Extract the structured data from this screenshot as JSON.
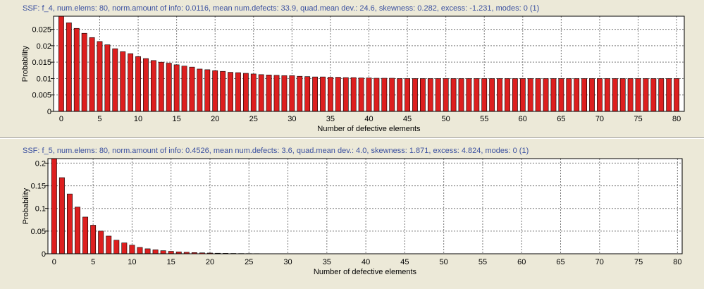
{
  "colors": {
    "bar": "#dd1f1f",
    "bar_edge": "#000000",
    "header_text": "#3a50a0",
    "background": "#ece9d8",
    "plot_bg": "#ffffff"
  },
  "panels": [
    {
      "header": "SSF: f_4,  num.elems: 80,  norm.amount of info: 0.0116,  mean num.defects: 33.9,  quad.mean dev.: 24.6,  skewness: 0.282,  excess: -1.231,  modes: 0 (1)"
    },
    {
      "header": "SSF: f_5,  num.elems: 80,  norm.amount of info: 0.4526,  mean num.defects: 3.6,  quad.mean dev.: 4.0,  skewness: 1.871,  excess: 4.824,  modes: 0 (1)"
    }
  ],
  "chart_data": [
    {
      "type": "bar",
      "xlabel": "Number of defective elements",
      "ylabel": "Probability",
      "x": [
        0,
        1,
        2,
        3,
        4,
        5,
        6,
        7,
        8,
        9,
        10,
        11,
        12,
        13,
        14,
        15,
        16,
        17,
        18,
        19,
        20,
        21,
        22,
        23,
        24,
        25,
        26,
        27,
        28,
        29,
        30,
        31,
        32,
        33,
        34,
        35,
        36,
        37,
        38,
        39,
        40,
        41,
        42,
        43,
        44,
        45,
        46,
        47,
        48,
        49,
        50,
        51,
        52,
        53,
        54,
        55,
        56,
        57,
        58,
        59,
        60,
        61,
        62,
        63,
        64,
        65,
        66,
        67,
        68,
        69,
        70,
        71,
        72,
        73,
        74,
        75,
        76,
        77,
        78,
        79,
        80
      ],
      "values": [
        0.0295,
        0.027,
        0.0253,
        0.0238,
        0.0225,
        0.0213,
        0.0203,
        0.0191,
        0.0182,
        0.0176,
        0.0167,
        0.0161,
        0.0155,
        0.015,
        0.0147,
        0.0142,
        0.0138,
        0.0135,
        0.0129,
        0.0127,
        0.0124,
        0.0122,
        0.0119,
        0.0118,
        0.0116,
        0.0114,
        0.0112,
        0.0111,
        0.011,
        0.0109,
        0.0109,
        0.0107,
        0.0106,
        0.0105,
        0.0105,
        0.0104,
        0.0104,
        0.0103,
        0.0103,
        0.0102,
        0.0102,
        0.0101,
        0.0101,
        0.0101,
        0.01,
        0.01,
        0.01,
        0.01,
        0.01,
        0.01,
        0.01,
        0.01,
        0.01,
        0.01,
        0.01,
        0.01,
        0.01,
        0.01,
        0.01,
        0.01,
        0.01,
        0.01,
        0.01,
        0.01,
        0.01,
        0.01,
        0.01,
        0.01,
        0.01,
        0.01,
        0.01,
        0.01,
        0.01,
        0.01,
        0.01,
        0.01,
        0.01,
        0.01,
        0.01,
        0.01,
        0.01
      ],
      "xlim": [
        -1,
        81
      ],
      "ylim": [
        0,
        0.029
      ],
      "xticks": [
        "0",
        "5",
        "10",
        "15",
        "20",
        "25",
        "30",
        "35",
        "40",
        "45",
        "50",
        "55",
        "60",
        "65",
        "70",
        "75",
        "80"
      ],
      "yticks": [
        "0",
        "0.005",
        "0.01",
        "0.015",
        "0.02",
        "0.025"
      ],
      "grid": true
    },
    {
      "type": "bar",
      "xlabel": "Number of defective elements",
      "ylabel": "Probability",
      "x": [
        0,
        1,
        2,
        3,
        4,
        5,
        6,
        7,
        8,
        9,
        10,
        11,
        12,
        13,
        14,
        15,
        16,
        17,
        18,
        19,
        20,
        21,
        22,
        23,
        24,
        25,
        26,
        27,
        28,
        29,
        30,
        31,
        32,
        33,
        34,
        35,
        36,
        37,
        38,
        39,
        40,
        41,
        42,
        43,
        44,
        45,
        46,
        47,
        48,
        49,
        50,
        51,
        52,
        53,
        54,
        55,
        56,
        57,
        58,
        59,
        60,
        61,
        62,
        63,
        64,
        65,
        66,
        67,
        68,
        69,
        70,
        71,
        72,
        73,
        74,
        75,
        76,
        77,
        78,
        79,
        80
      ],
      "values": [
        0.215,
        0.168,
        0.132,
        0.103,
        0.081,
        0.063,
        0.05,
        0.039,
        0.03,
        0.024,
        0.019,
        0.014,
        0.011,
        0.0087,
        0.0068,
        0.0054,
        0.0042,
        0.0033,
        0.0026,
        0.002,
        0.0016,
        0.0012,
        0.001,
        0.0008,
        0.0006,
        0.0005,
        0.0004,
        0.0003,
        0.0002,
        0.0002,
        0.0001,
        0.0001,
        0.0001,
        0.0001,
        0,
        0,
        0,
        0,
        0,
        0,
        0,
        0,
        0,
        0,
        0,
        0,
        0,
        0,
        0,
        0,
        0,
        0,
        0,
        0,
        0,
        0,
        0,
        0,
        0,
        0,
        0,
        0,
        0,
        0,
        0,
        0,
        0,
        0,
        0,
        0,
        0,
        0,
        0,
        0,
        0,
        0,
        0,
        0,
        0,
        0,
        0
      ],
      "xlim": [
        -0.8,
        80.6
      ],
      "ylim": [
        0,
        0.21
      ],
      "xticks": [
        "0",
        "5",
        "10",
        "15",
        "20",
        "25",
        "30",
        "35",
        "40",
        "45",
        "50",
        "55",
        "60",
        "65",
        "70",
        "75",
        "80"
      ],
      "yticks": [
        "0",
        "0.05",
        "0.1",
        "0.15",
        "0.2"
      ],
      "grid": true
    }
  ]
}
